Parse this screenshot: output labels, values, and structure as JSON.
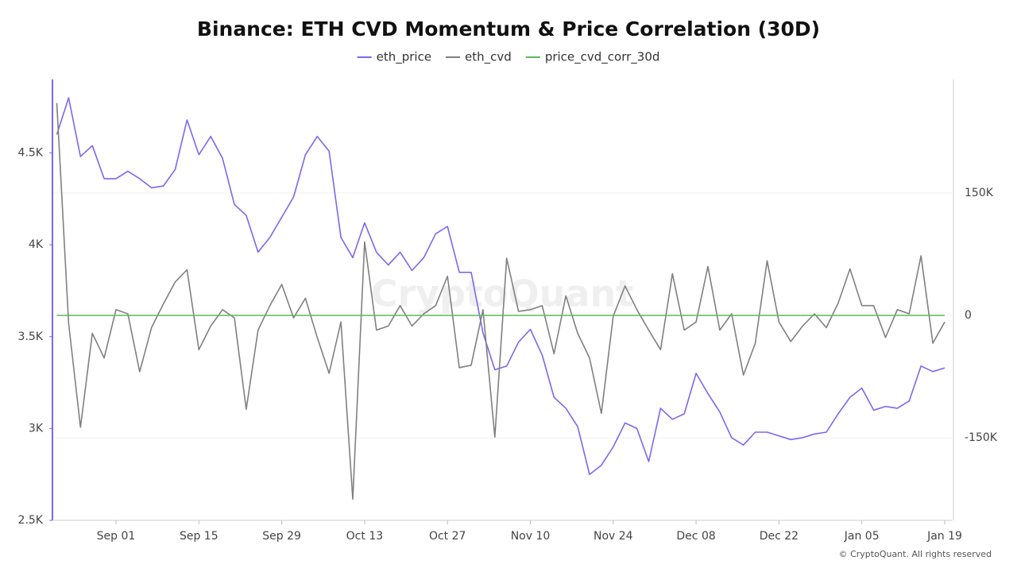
{
  "chart_data": {
    "type": "line",
    "title": "Binance: ETH CVD Momentum & Price Correlation (30D)",
    "watermark": "CryptoQuant",
    "footer": "© CryptoQuant. All rights reserved",
    "x": [
      "Aug 22",
      "Aug 24",
      "Aug 26",
      "Aug 28",
      "Aug 30",
      "Sep 01",
      "Sep 03",
      "Sep 05",
      "Sep 07",
      "Sep 09",
      "Sep 11",
      "Sep 13",
      "Sep 15",
      "Sep 17",
      "Sep 19",
      "Sep 21",
      "Sep 23",
      "Sep 25",
      "Sep 27",
      "Sep 29",
      "Oct 01",
      "Oct 03",
      "Oct 05",
      "Oct 07",
      "Oct 09",
      "Oct 11",
      "Oct 13",
      "Oct 15",
      "Oct 17",
      "Oct 19",
      "Oct 21",
      "Oct 23",
      "Oct 25",
      "Oct 27",
      "Oct 29",
      "Oct 31",
      "Nov 02",
      "Nov 04",
      "Nov 06",
      "Nov 08",
      "Nov 10",
      "Nov 12",
      "Nov 14",
      "Nov 16",
      "Nov 18",
      "Nov 20",
      "Nov 22",
      "Nov 24",
      "Nov 26",
      "Nov 28",
      "Nov 30",
      "Dec 02",
      "Dec 04",
      "Dec 06",
      "Dec 08",
      "Dec 10",
      "Dec 12",
      "Dec 14",
      "Dec 16",
      "Dec 18",
      "Dec 20",
      "Dec 22",
      "Dec 24",
      "Dec 26",
      "Dec 28",
      "Dec 30",
      "Jan 01",
      "Jan 03",
      "Jan 05",
      "Jan 07",
      "Jan 09",
      "Jan 11",
      "Jan 13",
      "Jan 15",
      "Jan 17",
      "Jan 19"
    ],
    "xticks": [
      "Sep 01",
      "Sep 15",
      "Sep 29",
      "Oct 13",
      "Oct 27",
      "Nov 10",
      "Nov 24",
      "Dec 08",
      "Dec 22",
      "Jan 05",
      "Jan 19"
    ],
    "ylim": [
      2500,
      4900
    ],
    "yticks": [
      {
        "value": 2500,
        "label": "2.5K"
      },
      {
        "value": 3000,
        "label": "3K"
      },
      {
        "value": 3500,
        "label": "3.5K"
      },
      {
        "value": 4000,
        "label": "4K"
      },
      {
        "value": 4500,
        "label": "4.5K"
      }
    ],
    "y2lim": [
      -251000,
      289000
    ],
    "y2ticks": [
      {
        "value": -150000,
        "label": "-150K"
      },
      0,
      {
        "value": 150000,
        "label": "150K"
      }
    ],
    "grid": true,
    "legend": "top",
    "series": [
      {
        "name": "eth_price",
        "color": "#7b68ee",
        "axis": "y",
        "values": [
          4600,
          4800,
          4480,
          4540,
          4360,
          4360,
          4400,
          4360,
          4310,
          4320,
          4410,
          4680,
          4490,
          4590,
          4470,
          4220,
          4160,
          3960,
          4040,
          4150,
          4260,
          4490,
          4590,
          4510,
          4040,
          3930,
          4120,
          3960,
          3890,
          3960,
          3860,
          3930,
          4060,
          4100,
          3850,
          3850,
          3520,
          3320,
          3340,
          3470,
          3540,
          3400,
          3170,
          3110,
          3010,
          2750,
          2800,
          2900,
          3030,
          3000,
          2820,
          3110,
          3050,
          3080,
          3300,
          3190,
          3090,
          2950,
          2910,
          2980,
          2980,
          2960,
          2940,
          2950,
          2970,
          2980,
          3080,
          3170,
          3220,
          3100,
          3120,
          3110,
          3150,
          3340,
          3310,
          3330
        ]
      },
      {
        "name": "eth_cvd",
        "color": "#808080",
        "axis": "y2",
        "values": [
          260000,
          -10000,
          -137000,
          -22000,
          -52000,
          7000,
          2000,
          -69000,
          -15000,
          14000,
          41000,
          56000,
          -42000,
          -13000,
          7000,
          -3000,
          -115000,
          -18000,
          12000,
          38000,
          -3000,
          21000,
          -27000,
          -71000,
          -8000,
          -225000,
          90000,
          -18000,
          -13000,
          12000,
          -13000,
          2000,
          12000,
          48000,
          -64000,
          -61000,
          7000,
          -149000,
          70000,
          5000,
          7000,
          12000,
          -47000,
          24000,
          -22000,
          -52000,
          -120000,
          -1000,
          36000,
          7000,
          -18000,
          -42000,
          51000,
          -18000,
          -8000,
          60000,
          -18000,
          2000,
          -73000,
          -34000,
          67000,
          -8000,
          -32000,
          -13000,
          2000,
          -15000,
          15000,
          57000,
          12000,
          12000,
          -27000,
          7000,
          2000,
          73000,
          -34000,
          -8000
        ]
      },
      {
        "name": "price_cvd_corr_30d",
        "color": "#5cb85c",
        "axis": "y2",
        "values": [
          0,
          0,
          0,
          0,
          0,
          0,
          0,
          0,
          0,
          0,
          0,
          0,
          0,
          0,
          0,
          0,
          0,
          0,
          0,
          0,
          0,
          0,
          0,
          0,
          0,
          0,
          0,
          0,
          0,
          0,
          0,
          0,
          0,
          0,
          0,
          0,
          0,
          0,
          0,
          0,
          0,
          0,
          0,
          0,
          0,
          0,
          0,
          0,
          0,
          0,
          0,
          0,
          0,
          0,
          0,
          0,
          0,
          0,
          0,
          0,
          0,
          0,
          0,
          0,
          0,
          0,
          0,
          0,
          0,
          0,
          0,
          0,
          0,
          0,
          0,
          0
        ]
      }
    ]
  }
}
